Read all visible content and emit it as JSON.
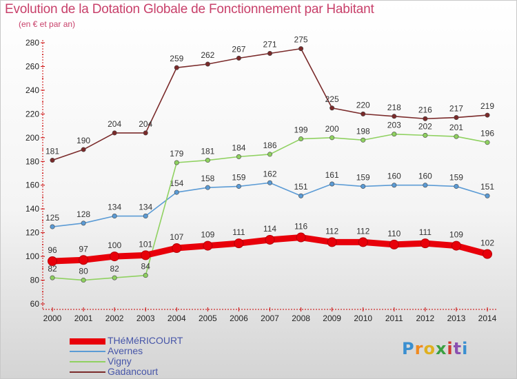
{
  "header": {
    "title": "Evolution de la Dotation Globale de Fonctionnement par Habitant",
    "subtitle": "(en € et par an)"
  },
  "logo": {
    "letters": [
      "P",
      "r",
      "o",
      "x",
      "i",
      "t",
      "i"
    ]
  },
  "chart_data": {
    "type": "line",
    "title": "Evolution de la Dotation Globale de Fonctionnement par Habitant",
    "subtitle": "(en € et par an)",
    "xlabel": "",
    "ylabel": "",
    "x": [
      "2000",
      "2001",
      "2002",
      "2003",
      "2004",
      "2005",
      "2006",
      "2007",
      "2008",
      "2009",
      "2010",
      "2011",
      "2012",
      "2013",
      "2014"
    ],
    "ylim": [
      60,
      280
    ],
    "yticks": [
      "60",
      "80",
      "100",
      "120",
      "140",
      "160",
      "180",
      "200",
      "220",
      "240",
      "260",
      "280"
    ],
    "grid": false,
    "legend_position": "bottom-left",
    "series": [
      {
        "name": "THéMéRICOURT",
        "color": "#e8000a",
        "emphasis": true,
        "values": [
          96,
          97,
          100,
          101,
          107,
          109,
          111,
          114,
          116,
          112,
          112,
          110,
          111,
          109,
          102
        ]
      },
      {
        "name": "Avernes",
        "color": "#5b9bd5",
        "emphasis": false,
        "values": [
          125,
          128,
          134,
          134,
          154,
          158,
          159,
          162,
          151,
          161,
          159,
          160,
          160,
          159,
          151
        ]
      },
      {
        "name": "Vigny",
        "color": "#8fd160",
        "emphasis": false,
        "values": [
          82,
          80,
          82,
          84,
          179,
          181,
          184,
          186,
          199,
          200,
          198,
          203,
          202,
          201,
          196
        ]
      },
      {
        "name": "Gadancourt",
        "color": "#7a2a2a",
        "emphasis": false,
        "values": [
          181,
          190,
          204,
          204,
          259,
          262,
          267,
          271,
          275,
          225,
          220,
          218,
          216,
          217,
          219
        ]
      }
    ]
  }
}
